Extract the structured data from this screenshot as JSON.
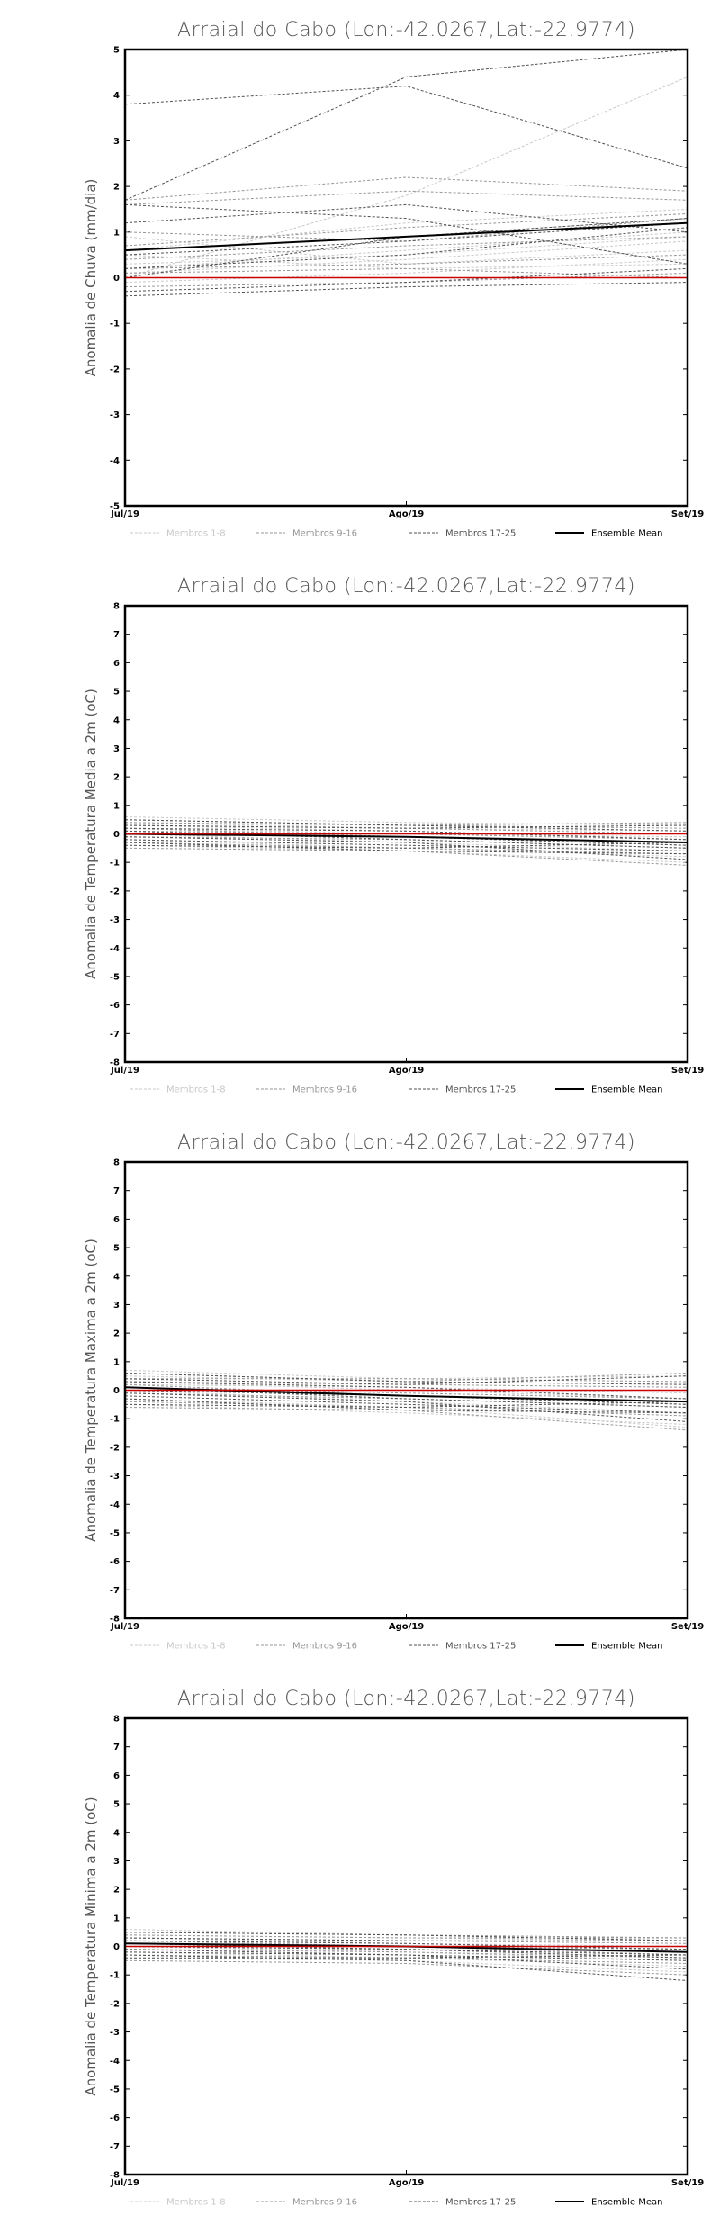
{
  "page": {
    "background": "#ffffff"
  },
  "legend": [
    {
      "label": "Membros 1-8",
      "color": "#c8c8c8",
      "dash": "3,2",
      "width": 1
    },
    {
      "label": "Membros 9-16",
      "color": "#969696",
      "dash": "3,2",
      "width": 1
    },
    {
      "label": "Membros 17-25",
      "color": "#505050",
      "dash": "3,2",
      "width": 1
    },
    {
      "label": "Ensemble Mean",
      "color": "#000000",
      "dash": "",
      "width": 2
    }
  ],
  "chart_data": [
    {
      "type": "line",
      "title": "Arraial do Cabo (Lon:-42.0267,Lat:-22.9774)",
      "ylabel": "Anomalia de Chuva (mm/dia)",
      "xlabel": "",
      "categories": [
        "Jul/19",
        "Ago/19",
        "Set/19"
      ],
      "ylim": [
        -5,
        5
      ],
      "yticks": [
        -5,
        -4,
        -3,
        -2,
        -1,
        0,
        1,
        2,
        3,
        4,
        5
      ],
      "grid": false,
      "legend_position": "bottom",
      "reference": {
        "color": "#cc0000",
        "values": [
          0.0,
          0.0,
          0.0
        ]
      },
      "series": [
        {
          "group": 0,
          "values": [
            0.1,
            0.4,
            0.8
          ]
        },
        {
          "group": 0,
          "values": [
            0.0,
            1.8,
            4.4
          ]
        },
        {
          "group": 0,
          "values": [
            0.3,
            0.5,
            0.9
          ]
        },
        {
          "group": 0,
          "values": [
            0.5,
            0.2,
            0.3
          ]
        },
        {
          "group": 0,
          "values": [
            -0.1,
            0.1,
            0.4
          ]
        },
        {
          "group": 0,
          "values": [
            0.2,
            0.6,
            1.0
          ]
        },
        {
          "group": 0,
          "values": [
            0.9,
            0.3,
            0.6
          ]
        },
        {
          "group": 0,
          "values": [
            0.6,
            1.2,
            1.5
          ]
        },
        {
          "group": 1,
          "values": [
            1.7,
            2.2,
            1.9
          ]
        },
        {
          "group": 1,
          "values": [
            0.2,
            0.3,
            0.5
          ]
        },
        {
          "group": 1,
          "values": [
            1.0,
            0.8,
            1.3
          ]
        },
        {
          "group": 1,
          "values": [
            -0.2,
            -0.1,
            0.1
          ]
        },
        {
          "group": 1,
          "values": [
            0.4,
            0.7,
            0.9
          ]
        },
        {
          "group": 1,
          "values": [
            0.7,
            1.1,
            1.4
          ]
        },
        {
          "group": 1,
          "values": [
            0.1,
            0.2,
            0.0
          ]
        },
        {
          "group": 1,
          "values": [
            1.6,
            1.9,
            1.7
          ]
        },
        {
          "group": 2,
          "values": [
            3.8,
            4.2,
            2.4
          ]
        },
        {
          "group": 2,
          "values": [
            1.7,
            4.4,
            5.0
          ]
        },
        {
          "group": 2,
          "values": [
            1.6,
            1.3,
            0.3
          ]
        },
        {
          "group": 2,
          "values": [
            1.2,
            1.6,
            1.0
          ]
        },
        {
          "group": 2,
          "values": [
            -0.3,
            -0.1,
            0.2
          ]
        },
        {
          "group": 2,
          "values": [
            0.0,
            0.9,
            1.3
          ]
        },
        {
          "group": 2,
          "values": [
            -0.4,
            -0.2,
            -0.1
          ]
        },
        {
          "group": 2,
          "values": [
            0.2,
            0.5,
            1.1
          ]
        },
        {
          "group": 2,
          "values": [
            0.5,
            0.8,
            1.2
          ]
        },
        {
          "group": 3,
          "values": [
            0.6,
            0.9,
            1.2
          ]
        }
      ]
    },
    {
      "type": "line",
      "title": "Arraial do Cabo (Lon:-42.0267,Lat:-22.9774)",
      "ylabel": "Anomalia de Temperatura Media a 2m (oC)",
      "xlabel": "",
      "categories": [
        "Jul/19",
        "Ago/19",
        "Set/19"
      ],
      "ylim": [
        -8,
        8
      ],
      "yticks": [
        -8,
        -7,
        -6,
        -5,
        -4,
        -3,
        -2,
        -1,
        0,
        1,
        2,
        3,
        4,
        5,
        6,
        7,
        8
      ],
      "grid": false,
      "legend_position": "bottom",
      "reference": {
        "color": "#cc0000",
        "values": [
          0.0,
          0.0,
          0.0
        ]
      },
      "series": [
        {
          "group": 0,
          "values": [
            0.6,
            0.4,
            0.3
          ]
        },
        {
          "group": 0,
          "values": [
            0.3,
            0.1,
            -0.2
          ]
        },
        {
          "group": 0,
          "values": [
            -0.2,
            -0.5,
            -0.8
          ]
        },
        {
          "group": 0,
          "values": [
            0.1,
            -0.1,
            -0.3
          ]
        },
        {
          "group": 0,
          "values": [
            -0.4,
            -0.6,
            -1.0
          ]
        },
        {
          "group": 0,
          "values": [
            0.4,
            0.2,
            0.1
          ]
        },
        {
          "group": 0,
          "values": [
            0.0,
            -0.3,
            -0.6
          ]
        },
        {
          "group": 0,
          "values": [
            0.2,
            0.0,
            -0.1
          ]
        },
        {
          "group": 1,
          "values": [
            0.5,
            0.3,
            0.4
          ]
        },
        {
          "group": 1,
          "values": [
            -0.1,
            -0.2,
            -0.5
          ]
        },
        {
          "group": 1,
          "values": [
            0.3,
            0.2,
            0.0
          ]
        },
        {
          "group": 1,
          "values": [
            -0.3,
            -0.5,
            -0.7
          ]
        },
        {
          "group": 1,
          "values": [
            0.1,
            0.0,
            -0.2
          ]
        },
        {
          "group": 1,
          "values": [
            0.2,
            -0.1,
            -0.4
          ]
        },
        {
          "group": 1,
          "values": [
            -0.5,
            -0.6,
            -1.1
          ]
        },
        {
          "group": 1,
          "values": [
            0.4,
            0.3,
            0.2
          ]
        },
        {
          "group": 2,
          "values": [
            0.3,
            0.2,
            0.3
          ]
        },
        {
          "group": 2,
          "values": [
            -0.2,
            -0.4,
            -0.6
          ]
        },
        {
          "group": 2,
          "values": [
            0.1,
            -0.2,
            -0.5
          ]
        },
        {
          "group": 2,
          "values": [
            -0.4,
            -0.5,
            -0.3
          ]
        },
        {
          "group": 2,
          "values": [
            0.2,
            0.1,
            -0.2
          ]
        },
        {
          "group": 2,
          "values": [
            0.0,
            -0.1,
            -0.4
          ]
        },
        {
          "group": 2,
          "values": [
            -0.1,
            -0.3,
            -0.9
          ]
        },
        {
          "group": 2,
          "values": [
            0.5,
            0.3,
            0.1
          ]
        },
        {
          "group": 2,
          "values": [
            -0.3,
            -0.6,
            -0.7
          ]
        },
        {
          "group": 3,
          "values": [
            0.0,
            -0.1,
            -0.3
          ]
        }
      ]
    },
    {
      "type": "line",
      "title": "Arraial do Cabo (Lon:-42.0267,Lat:-22.9774)",
      "ylabel": "Anomalia de Temperatura Maxima a 2m (oC)",
      "xlabel": "",
      "categories": [
        "Jul/19",
        "Ago/19",
        "Set/19"
      ],
      "ylim": [
        -8,
        8
      ],
      "yticks": [
        -8,
        -7,
        -6,
        -5,
        -4,
        -3,
        -2,
        -1,
        0,
        1,
        2,
        3,
        4,
        5,
        6,
        7,
        8
      ],
      "grid": false,
      "legend_position": "bottom",
      "reference": {
        "color": "#cc0000",
        "values": [
          0.0,
          0.0,
          0.0
        ]
      },
      "series": [
        {
          "group": 0,
          "values": [
            0.7,
            0.4,
            0.5
          ]
        },
        {
          "group": 0,
          "values": [
            0.3,
            0.0,
            -0.3
          ]
        },
        {
          "group": 0,
          "values": [
            -0.3,
            -0.6,
            -1.3
          ]
        },
        {
          "group": 0,
          "values": [
            0.1,
            -0.2,
            -0.5
          ]
        },
        {
          "group": 0,
          "values": [
            -0.5,
            -0.8,
            -1.2
          ]
        },
        {
          "group": 0,
          "values": [
            0.5,
            0.3,
            0.2
          ]
        },
        {
          "group": 0,
          "values": [
            0.0,
            -0.4,
            -0.8
          ]
        },
        {
          "group": 0,
          "values": [
            0.2,
            0.1,
            -0.1
          ]
        },
        {
          "group": 1,
          "values": [
            0.6,
            0.3,
            0.6
          ]
        },
        {
          "group": 1,
          "values": [
            -0.1,
            -0.3,
            -0.6
          ]
        },
        {
          "group": 1,
          "values": [
            0.3,
            0.2,
            0.1
          ]
        },
        {
          "group": 1,
          "values": [
            -0.4,
            -0.6,
            -0.9
          ]
        },
        {
          "group": 1,
          "values": [
            0.1,
            -0.1,
            -0.3
          ]
        },
        {
          "group": 1,
          "values": [
            0.2,
            -0.2,
            -0.5
          ]
        },
        {
          "group": 1,
          "values": [
            -0.6,
            -0.7,
            -1.4
          ]
        },
        {
          "group": 1,
          "values": [
            0.4,
            0.4,
            0.3
          ]
        },
        {
          "group": 2,
          "values": [
            0.4,
            0.2,
            0.5
          ]
        },
        {
          "group": 2,
          "values": [
            -0.2,
            -0.5,
            -0.8
          ]
        },
        {
          "group": 2,
          "values": [
            0.1,
            -0.3,
            -0.6
          ]
        },
        {
          "group": 2,
          "values": [
            -0.5,
            -0.6,
            -0.4
          ]
        },
        {
          "group": 2,
          "values": [
            0.3,
            0.1,
            -0.3
          ]
        },
        {
          "group": 2,
          "values": [
            0.0,
            -0.2,
            -0.5
          ]
        },
        {
          "group": 2,
          "values": [
            -0.1,
            -0.4,
            -1.1
          ]
        },
        {
          "group": 2,
          "values": [
            0.6,
            0.3,
            0.2
          ]
        },
        {
          "group": 2,
          "values": [
            -0.3,
            -0.7,
            -0.8
          ]
        },
        {
          "group": 3,
          "values": [
            0.1,
            -0.2,
            -0.4
          ]
        }
      ]
    },
    {
      "type": "line",
      "title": "Arraial do Cabo (Lon:-42.0267,Lat:-22.9774)",
      "ylabel": "Anomalia de Temperatura Minima a 2m (oC)",
      "xlabel": "",
      "categories": [
        "Jul/19",
        "Ago/19",
        "Set/19"
      ],
      "ylim": [
        -8,
        8
      ],
      "yticks": [
        -8,
        -7,
        -6,
        -5,
        -4,
        -3,
        -2,
        -1,
        0,
        1,
        2,
        3,
        4,
        5,
        6,
        7,
        8
      ],
      "grid": false,
      "legend_position": "bottom",
      "reference": {
        "color": "#cc0000",
        "values": [
          0.0,
          0.0,
          0.0
        ]
      },
      "series": [
        {
          "group": 0,
          "values": [
            0.6,
            0.4,
            0.3
          ]
        },
        {
          "group": 0,
          "values": [
            0.2,
            0.1,
            -0.1
          ]
        },
        {
          "group": 0,
          "values": [
            -0.2,
            -0.4,
            -0.7
          ]
        },
        {
          "group": 0,
          "values": [
            0.1,
            0.0,
            -0.2
          ]
        },
        {
          "group": 0,
          "values": [
            -0.4,
            -0.5,
            -0.9
          ]
        },
        {
          "group": 0,
          "values": [
            0.4,
            0.3,
            0.2
          ]
        },
        {
          "group": 0,
          "values": [
            0.0,
            -0.2,
            -0.5
          ]
        },
        {
          "group": 0,
          "values": [
            0.3,
            0.1,
            0.0
          ]
        },
        {
          "group": 1,
          "values": [
            0.5,
            0.4,
            0.3
          ]
        },
        {
          "group": 1,
          "values": [
            -0.1,
            -0.2,
            -0.4
          ]
        },
        {
          "group": 1,
          "values": [
            0.3,
            0.2,
            0.1
          ]
        },
        {
          "group": 1,
          "values": [
            -0.3,
            -0.4,
            -0.6
          ]
        },
        {
          "group": 1,
          "values": [
            0.1,
            0.0,
            -0.1
          ]
        },
        {
          "group": 1,
          "values": [
            0.2,
            0.0,
            -0.3
          ]
        },
        {
          "group": 1,
          "values": [
            -0.5,
            -0.6,
            -1.0
          ]
        },
        {
          "group": 1,
          "values": [
            0.4,
            0.3,
            0.3
          ]
        },
        {
          "group": 2,
          "values": [
            0.3,
            0.2,
            0.2
          ]
        },
        {
          "group": 2,
          "values": [
            -0.2,
            -0.3,
            -0.5
          ]
        },
        {
          "group": 2,
          "values": [
            0.1,
            -0.1,
            -0.4
          ]
        },
        {
          "group": 2,
          "values": [
            -0.4,
            -0.4,
            -0.3
          ]
        },
        {
          "group": 2,
          "values": [
            0.2,
            0.1,
            -0.1
          ]
        },
        {
          "group": 2,
          "values": [
            0.0,
            -0.1,
            -0.3
          ]
        },
        {
          "group": 2,
          "values": [
            -0.1,
            -0.3,
            -0.8
          ]
        },
        {
          "group": 2,
          "values": [
            0.5,
            0.4,
            0.2
          ]
        },
        {
          "group": 2,
          "values": [
            -0.3,
            -0.5,
            -1.2
          ]
        },
        {
          "group": 3,
          "values": [
            0.1,
            0.0,
            -0.2
          ]
        }
      ]
    }
  ]
}
